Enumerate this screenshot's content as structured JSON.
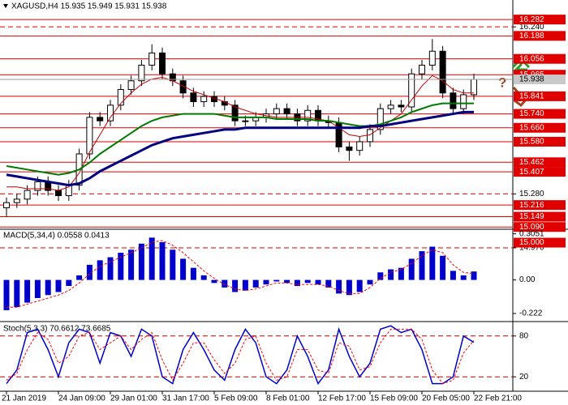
{
  "chart_data": [
    {
      "type": "candlestick",
      "title": "XAGUSD,H4  15.935 15.949 15.931 15.938",
      "categories": [
        "21 Jan 2019",
        null,
        null,
        null,
        null,
        "24 Jan 09:00",
        null,
        null,
        null,
        null,
        "29 Jan 01:00",
        null,
        null,
        null,
        null,
        "31 Jan 17:00",
        null,
        null,
        null,
        null,
        "5 Feb 09:00",
        null,
        null,
        null,
        null,
        "8 Feb 01:00",
        null,
        null,
        null,
        null,
        "12 Feb 17:00",
        null,
        null,
        null,
        null,
        "15 Feb 09:00",
        null,
        null,
        null,
        null,
        "20 Feb 05:00",
        null,
        null,
        null,
        null,
        "22 Feb 21:00"
      ],
      "open": [
        15.2,
        15.23,
        15.25,
        15.3,
        15.35,
        15.3,
        15.27,
        15.33,
        15.51,
        15.72,
        15.7,
        15.79,
        15.88,
        15.93,
        16.02,
        16.09,
        15.97,
        15.93,
        15.86,
        15.81,
        15.84,
        15.81,
        15.79,
        15.7,
        15.7,
        15.72,
        15.74,
        15.77,
        15.74,
        15.7,
        15.76,
        15.7,
        15.69,
        15.55,
        15.53,
        15.58,
        15.65,
        15.77,
        15.79,
        15.78,
        15.97,
        16.02,
        16.1,
        15.86,
        15.77,
        15.85
      ],
      "high": [
        15.26,
        15.28,
        15.33,
        15.38,
        15.38,
        15.33,
        15.36,
        15.54,
        15.75,
        15.75,
        15.82,
        15.91,
        15.96,
        16.05,
        16.14,
        16.12,
        16.0,
        15.96,
        15.89,
        15.87,
        15.87,
        15.84,
        15.82,
        15.73,
        15.75,
        15.77,
        15.8,
        15.8,
        15.77,
        15.79,
        15.79,
        15.73,
        15.72,
        15.58,
        15.61,
        15.68,
        15.8,
        15.82,
        15.82,
        16.0,
        16.05,
        16.17,
        16.13,
        15.89,
        15.88,
        15.97
      ],
      "low": [
        15.15,
        15.2,
        15.22,
        15.27,
        15.27,
        15.24,
        15.24,
        15.3,
        15.48,
        15.67,
        15.67,
        15.76,
        15.85,
        15.9,
        15.99,
        15.94,
        15.9,
        15.83,
        15.78,
        15.78,
        15.78,
        15.76,
        15.67,
        15.67,
        15.67,
        15.69,
        15.71,
        15.71,
        15.67,
        15.67,
        15.67,
        15.66,
        15.52,
        15.47,
        15.5,
        15.55,
        15.62,
        15.74,
        15.75,
        15.75,
        15.94,
        15.99,
        15.83,
        15.74,
        15.74,
        15.82
      ],
      "close": [
        15.23,
        15.25,
        15.3,
        15.35,
        15.3,
        15.27,
        15.33,
        15.51,
        15.72,
        15.7,
        15.79,
        15.88,
        15.93,
        16.02,
        16.09,
        15.97,
        15.93,
        15.86,
        15.81,
        15.84,
        15.81,
        15.79,
        15.7,
        15.7,
        15.72,
        15.74,
        15.77,
        15.74,
        15.7,
        15.76,
        15.7,
        15.69,
        15.55,
        15.53,
        15.58,
        15.65,
        15.77,
        15.79,
        15.78,
        15.97,
        16.02,
        16.1,
        15.86,
        15.77,
        15.85,
        15.938
      ],
      "lines": [
        {
          "color": "#c00000",
          "width": 1,
          "values": [
            15.32,
            15.32,
            15.31,
            15.31,
            15.31,
            15.3,
            15.32,
            15.4,
            15.52,
            15.62,
            15.72,
            15.8,
            15.86,
            15.91,
            15.94,
            15.95,
            15.93,
            15.9,
            15.87,
            15.85,
            15.83,
            15.81,
            15.78,
            15.76,
            15.74,
            15.73,
            15.72,
            15.72,
            15.72,
            15.72,
            15.71,
            15.7,
            15.66,
            15.62,
            15.61,
            15.62,
            15.66,
            15.7,
            15.74,
            15.82,
            15.9,
            15.96,
            15.93,
            15.88,
            15.86,
            15.86
          ]
        },
        {
          "color": "#007a00",
          "width": 2,
          "values": [
            15.44,
            15.43,
            15.42,
            15.41,
            15.4,
            15.39,
            15.4,
            15.42,
            15.46,
            15.51,
            15.55,
            15.59,
            15.63,
            15.67,
            15.7,
            15.72,
            15.73,
            15.74,
            15.74,
            15.74,
            15.74,
            15.73,
            15.72,
            15.72,
            15.72,
            15.72,
            15.71,
            15.71,
            15.71,
            15.71,
            15.7,
            15.7,
            15.69,
            15.68,
            15.67,
            15.67,
            15.68,
            15.7,
            15.72,
            15.75,
            15.77,
            15.79,
            15.8,
            15.8,
            15.8,
            15.8
          ]
        },
        {
          "color": "#000080",
          "width": 3,
          "values": [
            15.39,
            15.38,
            15.37,
            15.36,
            15.35,
            15.34,
            15.33,
            15.34,
            15.37,
            15.41,
            15.44,
            15.47,
            15.5,
            15.53,
            15.56,
            15.58,
            15.6,
            15.61,
            15.62,
            15.63,
            15.64,
            15.65,
            15.65,
            15.66,
            15.66,
            15.66,
            15.66,
            15.66,
            15.66,
            15.66,
            15.66,
            15.66,
            15.66,
            15.66,
            15.66,
            15.67,
            15.67,
            15.68,
            15.69,
            15.7,
            15.71,
            15.72,
            15.73,
            15.74,
            15.75,
            15.75
          ]
        }
      ],
      "ylim": [
        14.97,
        16.385
      ],
      "yticks": [
        {
          "value": 16.24,
          "label": "16.240"
        },
        {
          "value": 15.28,
          "label": "15.280"
        },
        {
          "value": 14.97,
          "label": "14.970"
        }
      ],
      "levels": [
        16.282,
        16.188,
        16.056,
        15.965,
        15.841,
        {
          "value": 15.74,
          "label": "15.740"
        },
        {
          "value": 15.66,
          "label": "15.660"
        },
        {
          "value": 15.58,
          "label": "15.580"
        },
        15.462,
        15.407,
        15.216,
        15.149,
        {
          "value": 15.09,
          "label": "15.090"
        },
        {
          "value": 15,
          "label": "15.000"
        }
      ],
      "level_color": "#e00000",
      "last_price": 15.938,
      "annotation": "?"
    },
    {
      "type": "bar",
      "title": "MACD(5,34,4) 0.0558 0.0413",
      "series": [
        {
          "mark": "bar",
          "color": "#0000cc",
          "values": [
            -0.2,
            -0.18,
            -0.15,
            -0.12,
            -0.1,
            -0.08,
            -0.04,
            0.03,
            0.1,
            0.13,
            0.15,
            0.18,
            0.2,
            0.24,
            0.28,
            0.25,
            0.2,
            0.14,
            0.08,
            0.03,
            -0.02,
            -0.05,
            -0.08,
            -0.07,
            -0.05,
            -0.03,
            -0.01,
            -0.02,
            -0.04,
            -0.02,
            -0.03,
            -0.05,
            -0.09,
            -0.1,
            -0.08,
            -0.03,
            0.05,
            0.07,
            0.08,
            0.14,
            0.19,
            0.22,
            0.16,
            0.06,
            0.03,
            0.0558
          ]
        },
        {
          "mark": "line",
          "color": "#ff0000",
          "dashed": true,
          "values": [
            -0.18,
            -0.18,
            -0.16,
            -0.14,
            -0.12,
            -0.1,
            -0.07,
            -0.02,
            0.04,
            0.09,
            0.12,
            0.15,
            0.18,
            0.21,
            0.25,
            0.26,
            0.23,
            0.18,
            0.12,
            0.06,
            0.01,
            -0.03,
            -0.06,
            -0.07,
            -0.06,
            -0.04,
            -0.02,
            -0.02,
            -0.03,
            -0.03,
            -0.03,
            -0.04,
            -0.07,
            -0.09,
            -0.09,
            -0.05,
            0.01,
            0.05,
            0.07,
            0.11,
            0.16,
            0.2,
            0.18,
            0.1,
            0.05,
            0.0413
          ]
        }
      ],
      "ylim": [
        -0.27,
        0.33
      ],
      "yticks": [
        0.3051,
        {
          "value": 0,
          "label": "0.00"
        },
        -0.222
      ]
    },
    {
      "type": "line",
      "title": "Stoch(5,3,3) 70.6612 73.6685",
      "series": [
        {
          "mark": "line",
          "color": "#0000cc",
          "values": [
            10,
            30,
            85,
            90,
            60,
            20,
            70,
            90,
            85,
            40,
            85,
            80,
            50,
            90,
            80,
            20,
            10,
            60,
            85,
            60,
            30,
            15,
            60,
            90,
            70,
            20,
            10,
            30,
            80,
            50,
            10,
            30,
            90,
            50,
            20,
            40,
            90,
            95,
            85,
            90,
            60,
            10,
            10,
            20,
            80,
            70.6612
          ]
        },
        {
          "mark": "line",
          "color": "#ff0000",
          "dashed": true,
          "values": [
            15,
            25,
            60,
            85,
            75,
            40,
            50,
            80,
            85,
            60,
            70,
            80,
            60,
            75,
            85,
            45,
            15,
            40,
            70,
            70,
            45,
            25,
            40,
            75,
            80,
            40,
            15,
            20,
            60,
            60,
            30,
            25,
            70,
            65,
            30,
            35,
            70,
            90,
            90,
            90,
            75,
            30,
            10,
            15,
            55,
            73.6685
          ]
        }
      ],
      "ylim": [
        0,
        100
      ],
      "yticks": [
        80,
        20
      ],
      "level_color": "#c00000"
    }
  ]
}
